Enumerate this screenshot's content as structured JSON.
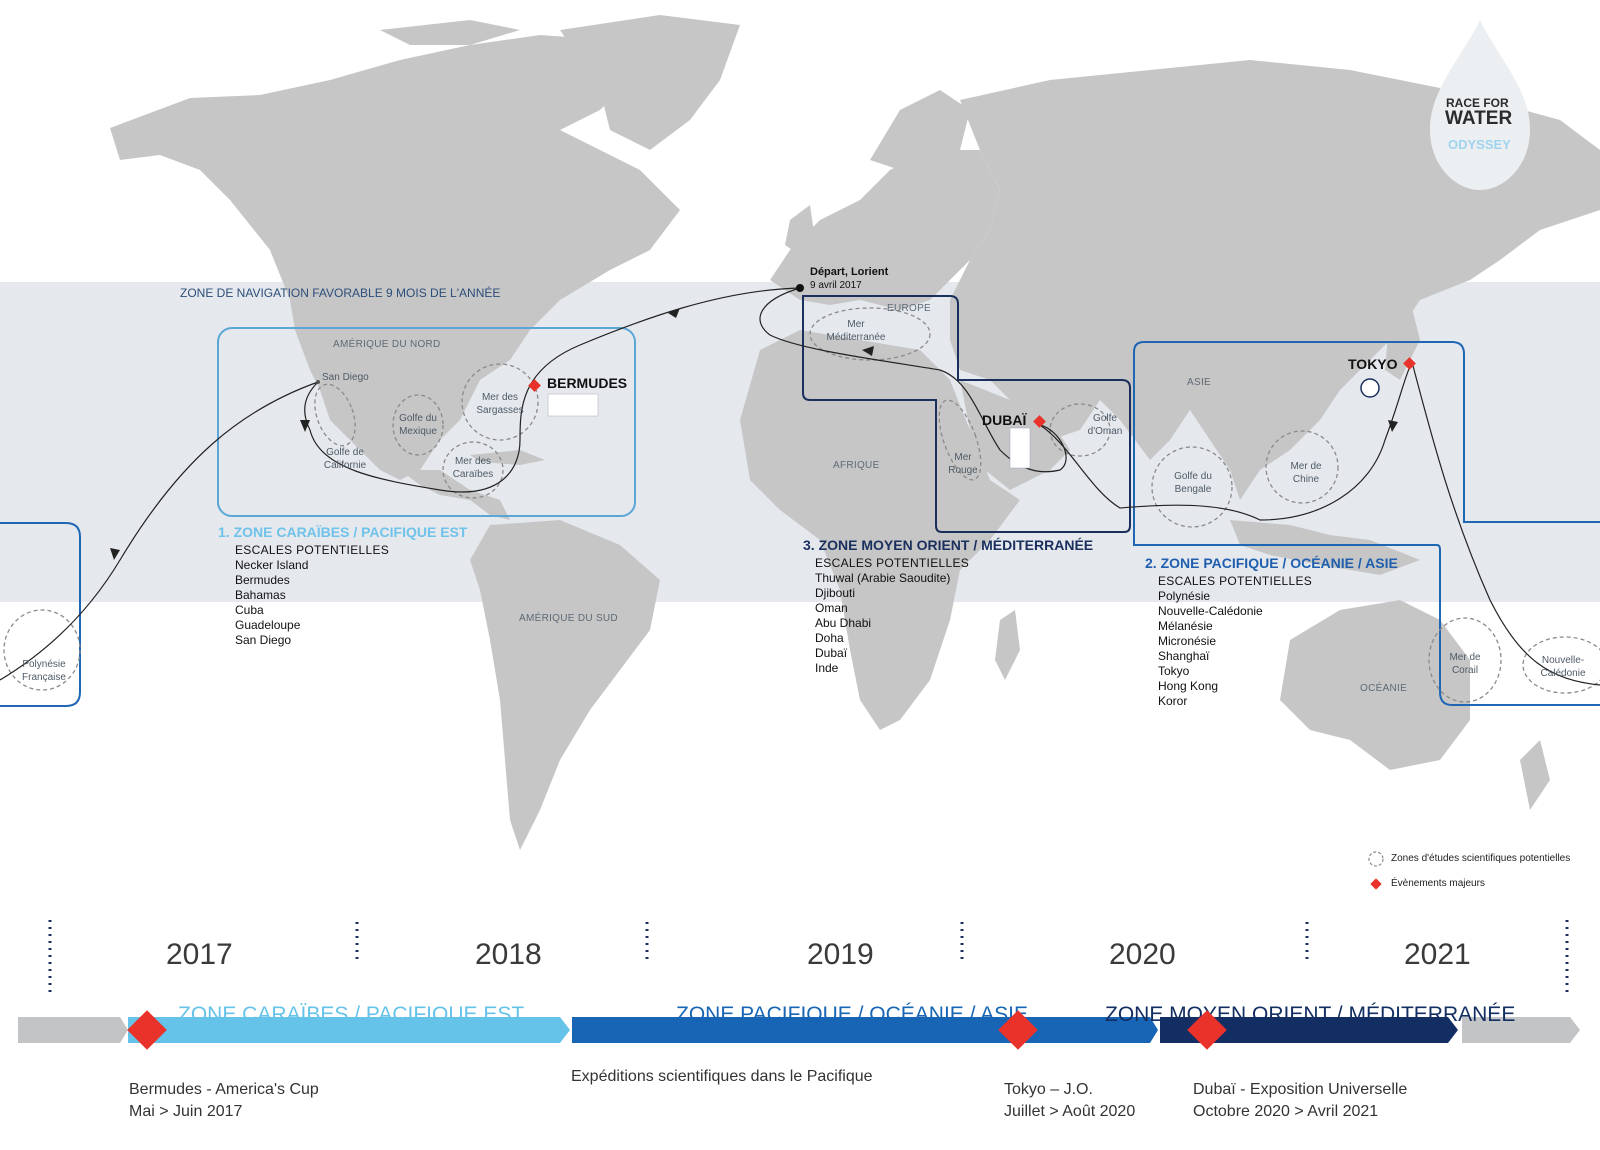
{
  "colors": {
    "land": "#c6c6c6",
    "band": "#e5e9ee",
    "zone1": "#5aa6d6",
    "zone1_text": "#6fc2ea",
    "zone2": "#1f66b3",
    "zone2_text": "#1f5fae",
    "zone3": "#1b2f5e",
    "zone3_text": "#1b2f5e",
    "event": "#e8322a"
  },
  "map": {
    "navigation_zone_label": "ZONE DE NAVIGATION FAVORABLE 9 MOIS DE L'ANNÉE",
    "regions": {
      "north_america": "AMÉRIQUE DU NORD",
      "south_america": "AMÉRIQUE DU SUD",
      "europe": "EUROPE",
      "africa": "AFRIQUE",
      "asia": "ASIE",
      "oceania": "OCÉANIE"
    },
    "seas": {
      "mediterranean": "Mer Méditerranée",
      "sargasso": "Mer des Sargasses",
      "gulf_mexico": "Golfe du Mexique",
      "gulf_california": "Golfe de Californie",
      "caribbean": "Mer des Caraïbes",
      "red_sea": "Mer Rouge",
      "gulf_oman": "Golfe d'Oman",
      "bay_bengal": "Golfe du Bengale",
      "china_sea": "Mer de Chine",
      "coral_sea": "Mer de Corail",
      "new_caledonia": "Nouvelle-Calédonie",
      "french_polynesia": "Polynésie Française"
    },
    "start": {
      "title": "Départ, Lorient",
      "date": "9 avril 2017"
    },
    "san_diego": "San Diego",
    "cities": {
      "bermudes": "BERMUDES",
      "dubai": "DUBAÏ",
      "tokyo": "TOKYO"
    },
    "zones": [
      {
        "title": "1. ZONE CARAÏBES / PACIFIQUE EST",
        "stops_header": "ESCALES POTENTIELLES",
        "stops": [
          "Necker Island",
          "Bermudes",
          "Bahamas",
          "Cuba",
          "Guadeloupe",
          "San Diego"
        ]
      },
      {
        "title": "2. ZONE PACIFIQUE / OCÉANIE / ASIE",
        "stops_header": "ESCALES POTENTIELLES",
        "stops": [
          "Polynésie",
          "Nouvelle-Calédonie",
          "Mélanésie",
          "Micronésie",
          "Shanghaï",
          "Tokyo",
          "Hong Kong",
          "Koror"
        ]
      },
      {
        "title": "3. ZONE MOYEN ORIENT / MÉDITERRANÉE",
        "stops_header": "ESCALES POTENTIELLES",
        "stops": [
          "Thuwal (Arabie Saoudite)",
          "Djibouti",
          "Oman",
          "Abu Dhabi",
          "Doha",
          "Dubaï",
          "Inde"
        ]
      }
    ],
    "legend": {
      "study_zones": "Zones d'études scientifiques potentielles",
      "major_events": "Évènements majeurs"
    }
  },
  "logo": {
    "line1": "RACE FOR",
    "line2": "WATER",
    "line3": "ODYSSEY"
  },
  "timeline": {
    "years": [
      "2017",
      "2018",
      "2019",
      "2020",
      "2021"
    ],
    "zones": [
      "ZONE CARAÏBES / PACIFIQUE EST",
      "ZONE PACIFIQUE / OCÉANIE / ASIE",
      "ZONE MOYEN ORIENT / MÉDITERRANÉE"
    ],
    "events": [
      {
        "line1": "Bermudes - America's Cup",
        "line2": "Mai > Juin 2017"
      },
      {
        "line1": "Expéditions scientifiques dans le Pacifique",
        "line2": ""
      },
      {
        "line1": "Tokyo – J.O.",
        "line2": "Juillet > Août 2020"
      },
      {
        "line1": "Dubaï - Exposition Universelle",
        "line2": "Octobre 2020 > Avril 2021"
      }
    ]
  }
}
